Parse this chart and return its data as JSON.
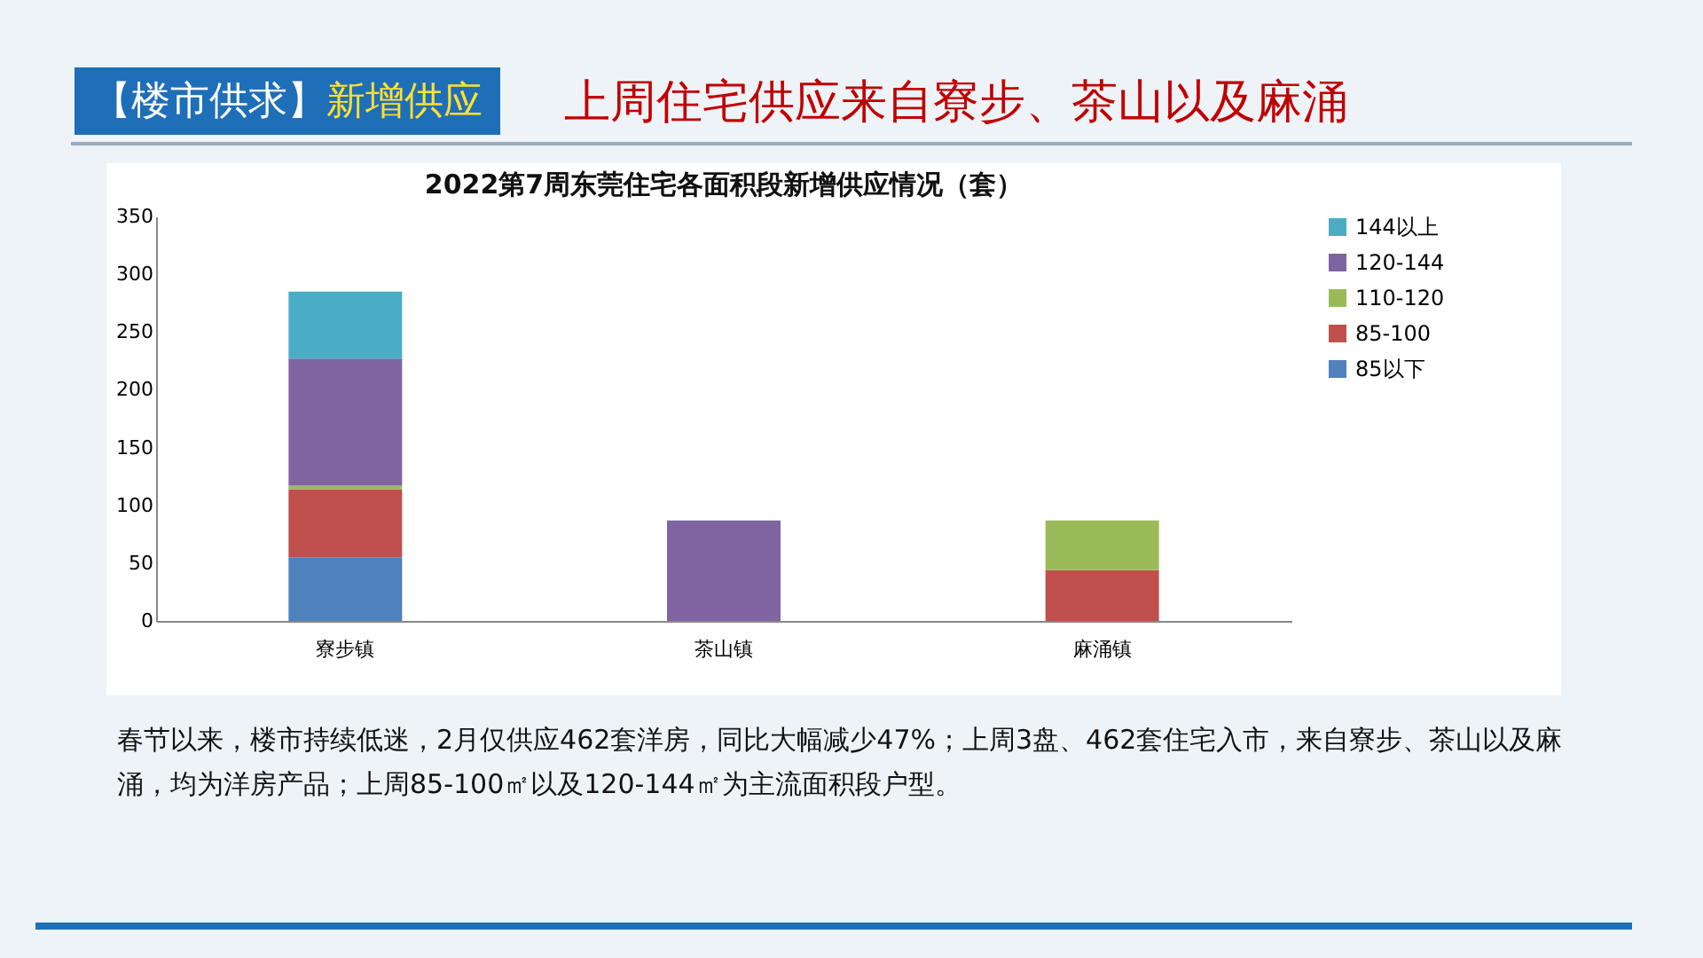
{
  "chart_data": {
    "type": "bar",
    "title": "2022第7周东莞住宅各面积段新增供应情况（套）",
    "annotations": [
      "【楼市供求】新增供应",
      "上周住宅供应来自寮步、茶山以及麻涌",
      "春节以来，楼市持续低迷，2月仅供应462套洋房，同比大幅减少47%；上周3盘、462套住宅入市，来自寮步、茶山以及麻涌，均为洋房产品；上周85-100㎡以及120-144㎡为主流面积段户型。"
    ],
    "categories": [
      "寮步镇",
      "茶山镇",
      "麻涌镇"
    ],
    "stacked": true,
    "series": [
      {
        "name": "85以下",
        "color": "#4f81bd",
        "values": [
          55,
          null,
          null
        ]
      },
      {
        "name": "85-100",
        "color": "#c0504d",
        "values": [
          59,
          null,
          44
        ]
      },
      {
        "name": "110-120",
        "color": "#9bbb59",
        "values": [
          3,
          null,
          43
        ]
      },
      {
        "name": "120-144",
        "color": "#8064a2",
        "values": [
          110,
          87,
          null
        ]
      },
      {
        "name": "144以上",
        "color": "#4bacc6",
        "values": [
          58,
          null,
          null
        ]
      }
    ],
    "ylim": [
      0,
      350
    ],
    "yticks": [
      0,
      50,
      100,
      150,
      200,
      250,
      300,
      350
    ],
    "grid": false,
    "legend": "right"
  }
}
